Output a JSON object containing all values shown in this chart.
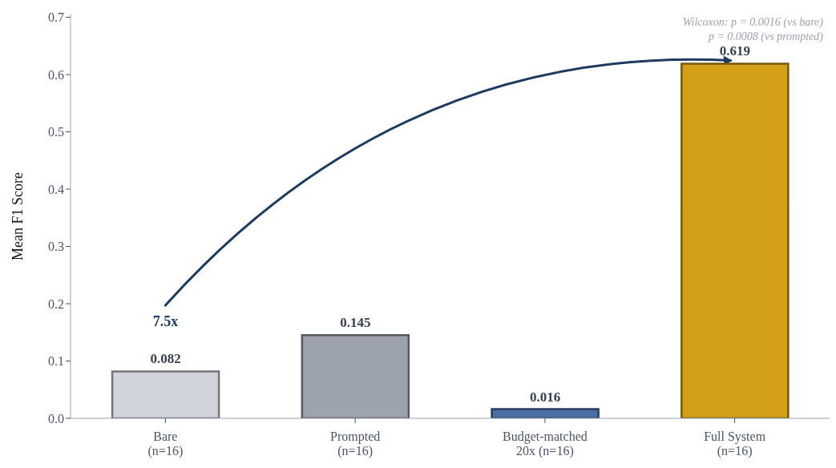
{
  "chart_data": {
    "type": "bar",
    "ylabel": "Mean F1 Score",
    "categories": [
      "Bare\n(n=16)",
      "Prompted\n(n=16)",
      "Budget-matched\n20x (n=16)",
      "Full System\n(n=16)"
    ],
    "values": [
      0.082,
      0.145,
      0.016,
      0.619
    ],
    "colors": [
      "#d1d5db",
      "#9ca3af",
      "#4a6fa5",
      "#d4a017"
    ],
    "ylim": [
      0,
      0.705
    ],
    "yticks": [
      {
        "value": 0,
        "label": "0.0"
      },
      0.1,
      0.2,
      0.3,
      0.4,
      0.5,
      0.6,
      0.7
    ],
    "grid": false,
    "data_labels": true,
    "annotations": [
      "7.5x",
      "Wilcoxon: p = 0.0016 (vs bare)",
      "p = 0.0008 (vs prompted)"
    ]
  }
}
